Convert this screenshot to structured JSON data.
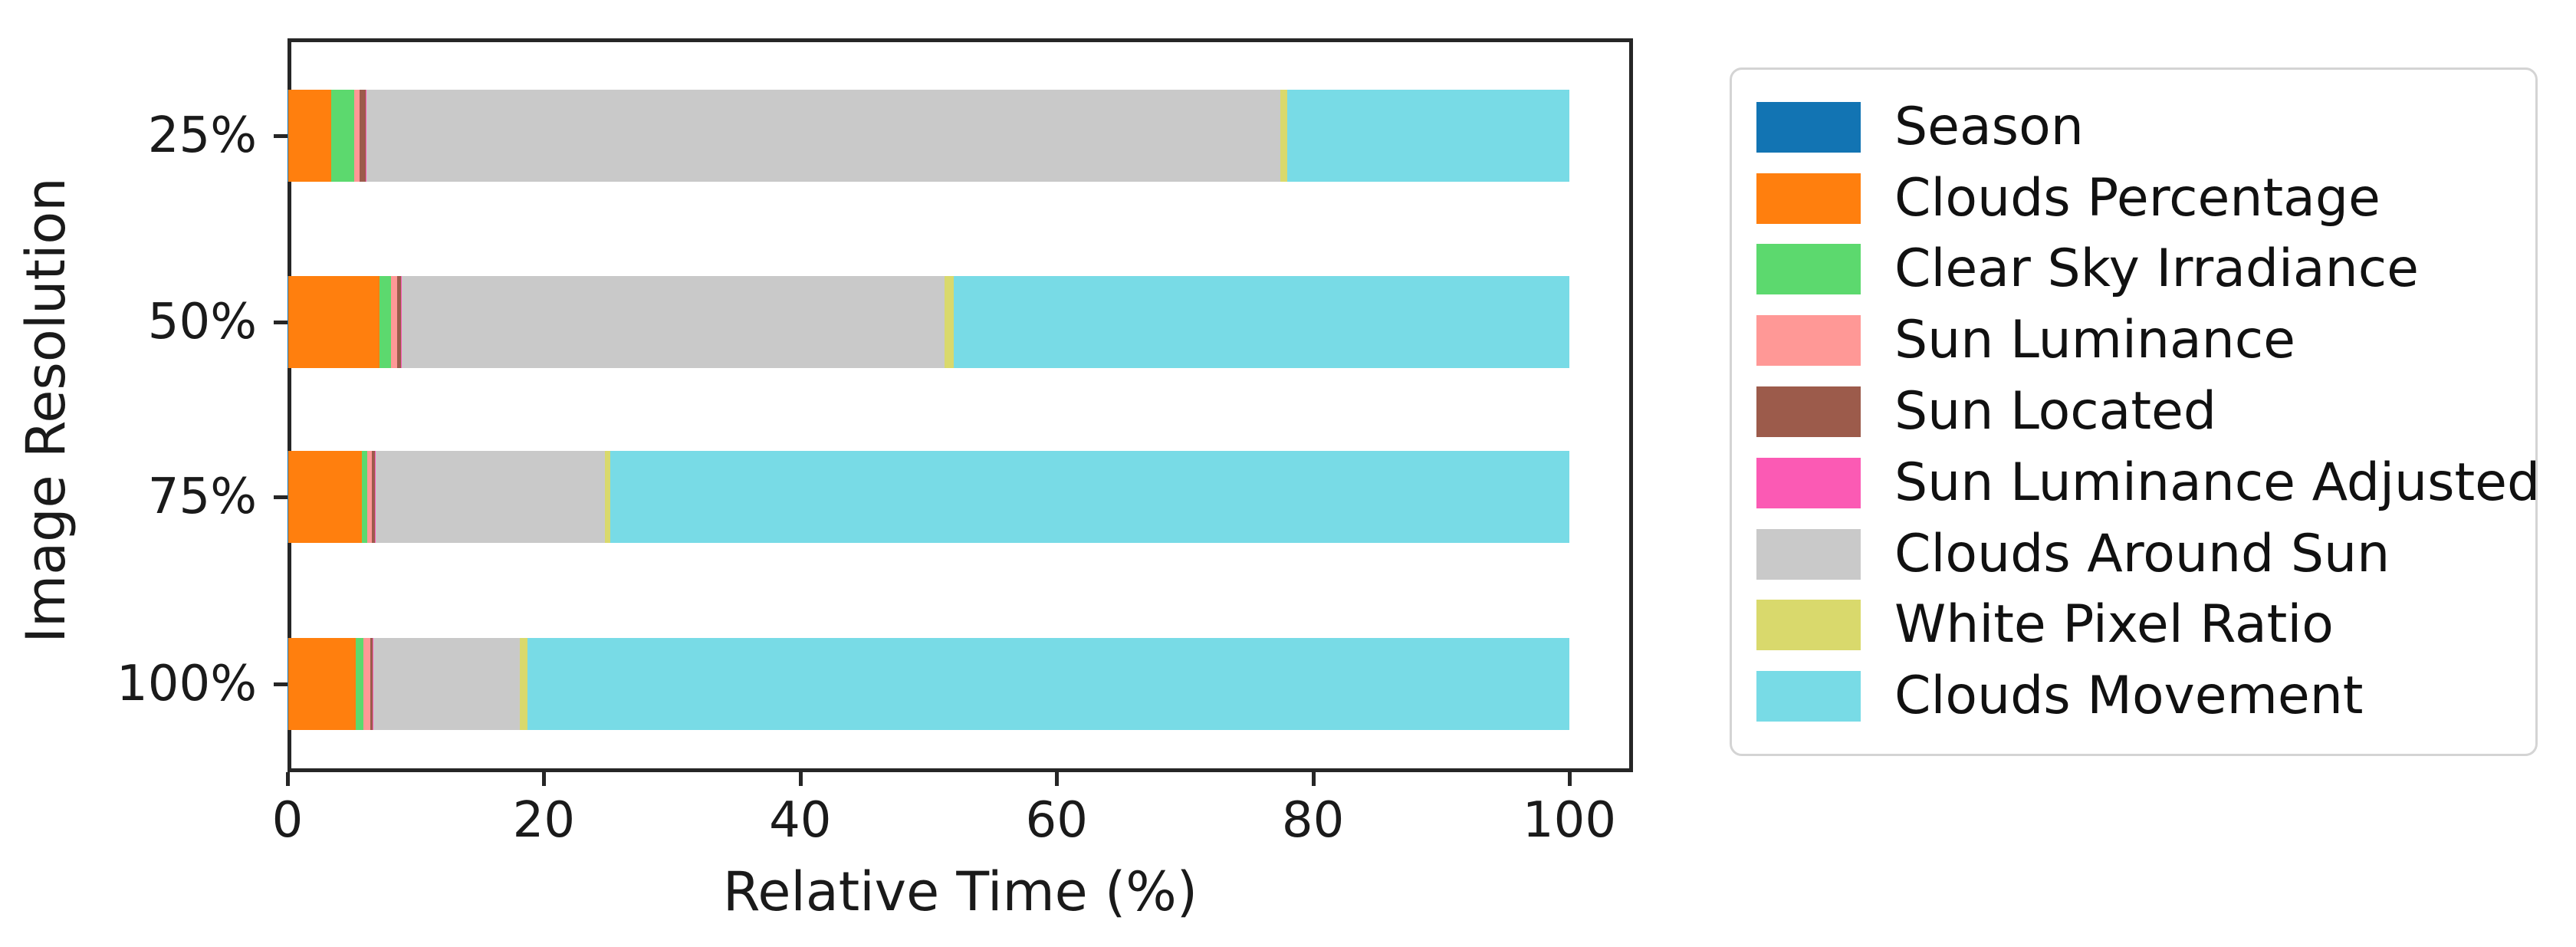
{
  "chart_data": {
    "type": "bar",
    "orientation": "horizontal",
    "stacked": true,
    "title": "",
    "xlabel": "Relative Time (%)",
    "ylabel": "Image Resolution",
    "categories": [
      "25%",
      "50%",
      "75%",
      "100%"
    ],
    "x_ticks": [
      "0",
      "20",
      "40",
      "60",
      "80",
      "100"
    ],
    "x_tick_values": [
      0,
      20,
      40,
      60,
      80,
      100
    ],
    "xlim": [
      0,
      104.9
    ],
    "grid": false,
    "legend_position": "outside-right",
    "series": [
      {
        "name": "Season",
        "color": "#1274b3",
        "values": [
          0.05,
          0.05,
          0.05,
          0.05
        ]
      },
      {
        "name": "Clouds Percentage",
        "color": "#ff7f0e",
        "values": [
          3.35,
          7.1,
          5.75,
          5.3
        ]
      },
      {
        "name": "Clear Sky Irradiance",
        "color": "#5cd96e",
        "values": [
          1.8,
          0.9,
          0.45,
          0.6
        ]
      },
      {
        "name": "Sun Luminance",
        "color": "#ff9896",
        "values": [
          0.4,
          0.5,
          0.35,
          0.5
        ]
      },
      {
        "name": "Sun Located",
        "color": "#9c5b4b",
        "values": [
          0.5,
          0.3,
          0.25,
          0.2
        ]
      },
      {
        "name": "Sun Luminance Adjusted",
        "color": "#fb5ab4",
        "values": [
          0.05,
          0.05,
          0.05,
          0.05
        ]
      },
      {
        "name": "Clouds Around Sun",
        "color": "#c9c9c9",
        "values": [
          71.3,
          42.35,
          17.85,
          11.45
        ]
      },
      {
        "name": "White Pixel Ratio",
        "color": "#d9d96c",
        "values": [
          0.55,
          0.75,
          0.45,
          0.6
        ]
      },
      {
        "name": "Clouds Movement",
        "color": "#78dbe6",
        "values": [
          22.0,
          48.0,
          74.8,
          81.25
        ]
      }
    ]
  }
}
